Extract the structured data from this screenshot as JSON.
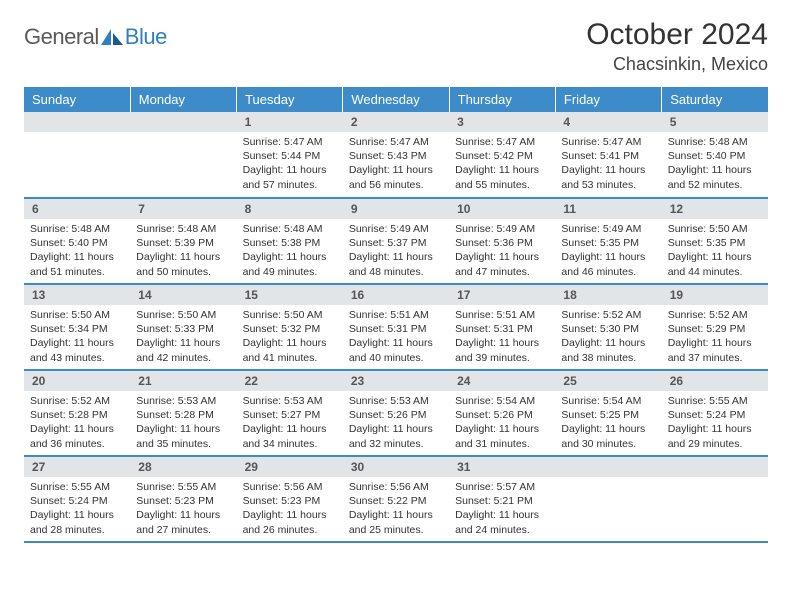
{
  "logo": {
    "text1": "General",
    "text2": "Blue"
  },
  "title": "October 2024",
  "location": "Chacsinkin, Mexico",
  "colors": {
    "header_bg": "#3d8cc9",
    "header_text": "#ffffff",
    "daynum_bg": "#e1e5e8",
    "border": "#3d8cc9",
    "logo_gray": "#5a5a5a",
    "logo_blue": "#2f7fc2"
  },
  "weekdays": [
    "Sunday",
    "Monday",
    "Tuesday",
    "Wednesday",
    "Thursday",
    "Friday",
    "Saturday"
  ],
  "weeks": [
    [
      null,
      null,
      {
        "n": "1",
        "sr": "5:47 AM",
        "ss": "5:44 PM",
        "dl": "11 hours and 57 minutes."
      },
      {
        "n": "2",
        "sr": "5:47 AM",
        "ss": "5:43 PM",
        "dl": "11 hours and 56 minutes."
      },
      {
        "n": "3",
        "sr": "5:47 AM",
        "ss": "5:42 PM",
        "dl": "11 hours and 55 minutes."
      },
      {
        "n": "4",
        "sr": "5:47 AM",
        "ss": "5:41 PM",
        "dl": "11 hours and 53 minutes."
      },
      {
        "n": "5",
        "sr": "5:48 AM",
        "ss": "5:40 PM",
        "dl": "11 hours and 52 minutes."
      }
    ],
    [
      {
        "n": "6",
        "sr": "5:48 AM",
        "ss": "5:40 PM",
        "dl": "11 hours and 51 minutes."
      },
      {
        "n": "7",
        "sr": "5:48 AM",
        "ss": "5:39 PM",
        "dl": "11 hours and 50 minutes."
      },
      {
        "n": "8",
        "sr": "5:48 AM",
        "ss": "5:38 PM",
        "dl": "11 hours and 49 minutes."
      },
      {
        "n": "9",
        "sr": "5:49 AM",
        "ss": "5:37 PM",
        "dl": "11 hours and 48 minutes."
      },
      {
        "n": "10",
        "sr": "5:49 AM",
        "ss": "5:36 PM",
        "dl": "11 hours and 47 minutes."
      },
      {
        "n": "11",
        "sr": "5:49 AM",
        "ss": "5:35 PM",
        "dl": "11 hours and 46 minutes."
      },
      {
        "n": "12",
        "sr": "5:50 AM",
        "ss": "5:35 PM",
        "dl": "11 hours and 44 minutes."
      }
    ],
    [
      {
        "n": "13",
        "sr": "5:50 AM",
        "ss": "5:34 PM",
        "dl": "11 hours and 43 minutes."
      },
      {
        "n": "14",
        "sr": "5:50 AM",
        "ss": "5:33 PM",
        "dl": "11 hours and 42 minutes."
      },
      {
        "n": "15",
        "sr": "5:50 AM",
        "ss": "5:32 PM",
        "dl": "11 hours and 41 minutes."
      },
      {
        "n": "16",
        "sr": "5:51 AM",
        "ss": "5:31 PM",
        "dl": "11 hours and 40 minutes."
      },
      {
        "n": "17",
        "sr": "5:51 AM",
        "ss": "5:31 PM",
        "dl": "11 hours and 39 minutes."
      },
      {
        "n": "18",
        "sr": "5:52 AM",
        "ss": "5:30 PM",
        "dl": "11 hours and 38 minutes."
      },
      {
        "n": "19",
        "sr": "5:52 AM",
        "ss": "5:29 PM",
        "dl": "11 hours and 37 minutes."
      }
    ],
    [
      {
        "n": "20",
        "sr": "5:52 AM",
        "ss": "5:28 PM",
        "dl": "11 hours and 36 minutes."
      },
      {
        "n": "21",
        "sr": "5:53 AM",
        "ss": "5:28 PM",
        "dl": "11 hours and 35 minutes."
      },
      {
        "n": "22",
        "sr": "5:53 AM",
        "ss": "5:27 PM",
        "dl": "11 hours and 34 minutes."
      },
      {
        "n": "23",
        "sr": "5:53 AM",
        "ss": "5:26 PM",
        "dl": "11 hours and 32 minutes."
      },
      {
        "n": "24",
        "sr": "5:54 AM",
        "ss": "5:26 PM",
        "dl": "11 hours and 31 minutes."
      },
      {
        "n": "25",
        "sr": "5:54 AM",
        "ss": "5:25 PM",
        "dl": "11 hours and 30 minutes."
      },
      {
        "n": "26",
        "sr": "5:55 AM",
        "ss": "5:24 PM",
        "dl": "11 hours and 29 minutes."
      }
    ],
    [
      {
        "n": "27",
        "sr": "5:55 AM",
        "ss": "5:24 PM",
        "dl": "11 hours and 28 minutes."
      },
      {
        "n": "28",
        "sr": "5:55 AM",
        "ss": "5:23 PM",
        "dl": "11 hours and 27 minutes."
      },
      {
        "n": "29",
        "sr": "5:56 AM",
        "ss": "5:23 PM",
        "dl": "11 hours and 26 minutes."
      },
      {
        "n": "30",
        "sr": "5:56 AM",
        "ss": "5:22 PM",
        "dl": "11 hours and 25 minutes."
      },
      {
        "n": "31",
        "sr": "5:57 AM",
        "ss": "5:21 PM",
        "dl": "11 hours and 24 minutes."
      },
      null,
      null
    ]
  ],
  "labels": {
    "sunrise": "Sunrise:",
    "sunset": "Sunset:",
    "daylight": "Daylight:"
  }
}
